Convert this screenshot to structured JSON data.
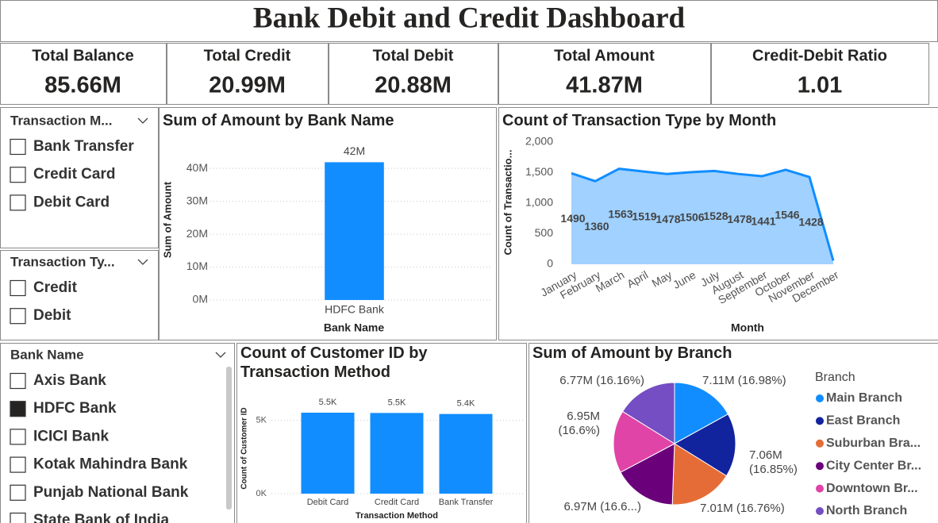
{
  "header": {
    "title": "Bank Debit and Credit Dashboard"
  },
  "kpis": [
    {
      "label": "Total Balance",
      "value": "85.66M"
    },
    {
      "label": "Total Credit",
      "value": "20.99M"
    },
    {
      "label": "Total Debit",
      "value": "20.88M"
    },
    {
      "label": "Total Amount",
      "value": "41.87M"
    },
    {
      "label": "Credit-Debit Ratio",
      "value": "1.01"
    }
  ],
  "slicers": [
    {
      "title": "Transaction M...",
      "items": [
        {
          "label": "Bank Transfer",
          "checked": false
        },
        {
          "label": "Credit Card",
          "checked": false
        },
        {
          "label": "Debit Card",
          "checked": false
        }
      ]
    },
    {
      "title": "Transaction Ty...",
      "items": [
        {
          "label": "Credit",
          "checked": false
        },
        {
          "label": "Debit",
          "checked": false
        }
      ]
    },
    {
      "title": "Bank Name",
      "items": [
        {
          "label": "Axis Bank",
          "checked": false
        },
        {
          "label": "HDFC Bank",
          "checked": true
        },
        {
          "label": "ICICI Bank",
          "checked": false
        },
        {
          "label": "Kotak Mahindra Bank",
          "checked": false
        },
        {
          "label": "Punjab National Bank",
          "checked": false
        },
        {
          "label": "State Bank of India",
          "checked": false
        }
      ]
    }
  ],
  "chart_data": [
    {
      "type": "bar",
      "title": "Sum of Amount by Bank Name",
      "x_label": "Bank Name",
      "y_label": "Sum of Amount",
      "categories": [
        "HDFC Bank"
      ],
      "values": [
        41.87
      ],
      "value_labels": [
        "42M"
      ],
      "color": "#118DFF",
      "ylim": [
        0,
        48
      ],
      "yticks": [
        {
          "value": 0,
          "label": "0M"
        },
        {
          "value": 10,
          "label": "10M"
        },
        {
          "value": 20,
          "label": "20M"
        },
        {
          "value": 30,
          "label": "30M"
        },
        {
          "value": 40,
          "label": "40M"
        }
      ],
      "grid": true
    },
    {
      "type": "area",
      "title": "Count of Transaction Type by Month",
      "x_label": "Month",
      "y_label": "Count of Transactio...",
      "categories": [
        "January",
        "February",
        "March",
        "April",
        "May",
        "June",
        "July",
        "August",
        "September",
        "October",
        "November",
        "December"
      ],
      "values": [
        1490,
        1360,
        1563,
        1519,
        1478,
        1506,
        1528,
        1478,
        1441,
        1546,
        1428,
        60
      ],
      "value_labels": [
        "1490",
        "1360",
        "1563",
        "1519",
        "1478",
        "1506",
        "1528",
        "1478",
        "1441",
        "1546",
        "1428",
        null
      ],
      "color": "#118DFF",
      "ylim": [
        0,
        2000
      ],
      "yticks": [
        0,
        500,
        {
          "value": 1000,
          "label": "1,000"
        },
        {
          "value": 1500,
          "label": "1,500"
        },
        {
          "value": 2000,
          "label": "2,000"
        }
      ],
      "grid": false
    },
    {
      "type": "bar",
      "title": "Count of Customer ID by Transaction Method",
      "x_label": "Transaction Method",
      "y_label": "Count of Customer ID",
      "categories": [
        "Debit Card",
        "Credit Card",
        "Bank Transfer"
      ],
      "values": [
        5530,
        5510,
        5440
      ],
      "value_labels": [
        "5.5K",
        "5.5K",
        "5.4K"
      ],
      "color": "#118DFF",
      "ylim": [
        0,
        5800
      ],
      "yticks": [
        {
          "value": 0,
          "label": "0K"
        },
        {
          "value": 5000,
          "label": "5K"
        }
      ],
      "grid": true
    },
    {
      "type": "pie",
      "title": "Sum of Amount by Branch",
      "legend_title": "Branch",
      "legend": "right",
      "series": [
        {
          "name": "Main Branch",
          "color": "#118DFF"
        },
        {
          "name": "East Branch",
          "color": "#12239E"
        },
        {
          "name": "Suburban Bra...",
          "color": "#E66C37"
        },
        {
          "name": "City Center Br...",
          "color": "#6B007B"
        },
        {
          "name": "Downtown Br...",
          "color": "#E044A7"
        },
        {
          "name": "North Branch",
          "color": "#744EC2"
        }
      ],
      "values": [
        7.11,
        7.06,
        7.01,
        6.97,
        6.95,
        6.77
      ],
      "value_labels": [
        "7.11M (16.98%)",
        "7.06M (16.85%)",
        "7.01M (16.76%)",
        "6.97M (16.6...)",
        "6.95M (16.6%)",
        "6.77M (16.16%)"
      ]
    }
  ]
}
